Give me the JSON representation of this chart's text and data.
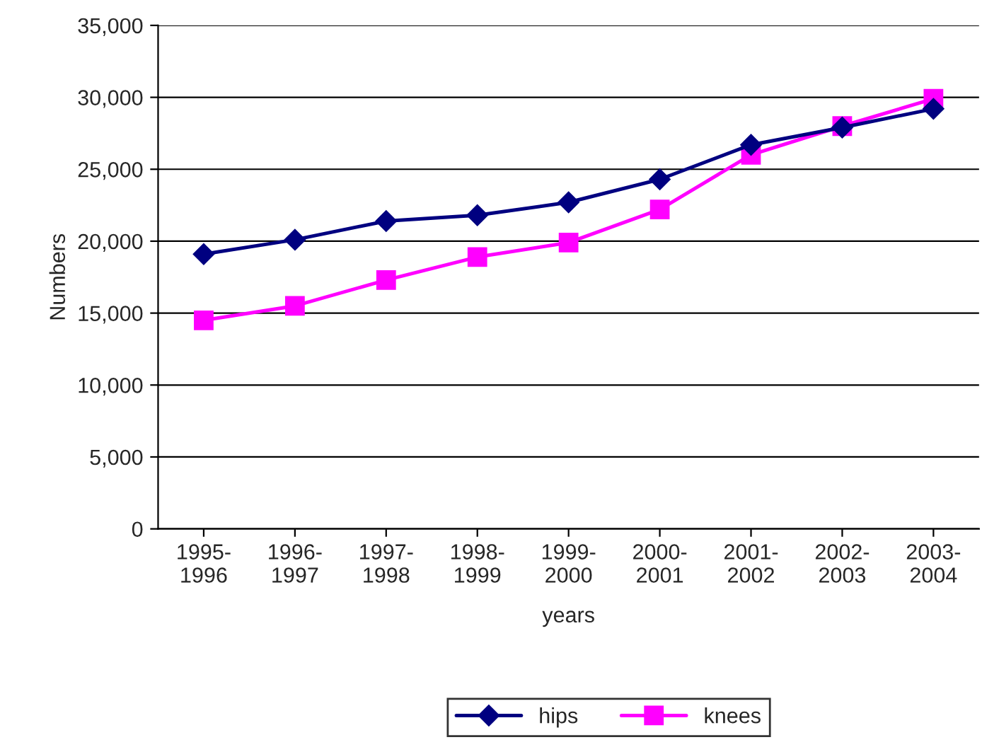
{
  "chart_data": {
    "type": "line",
    "xlabel": "years",
    "ylabel": "Numbers",
    "categories": [
      "1995-\n1996",
      "1996-\n1997",
      "1997-\n1998",
      "1998-\n1999",
      "1999-\n2000",
      "2000-\n2001",
      "2001-\n2002",
      "2002-\n2003",
      "2003-\n2004"
    ],
    "series": [
      {
        "name": "hips",
        "color": "#000080",
        "marker": "diamond",
        "values": [
          19100,
          20100,
          21400,
          21800,
          22700,
          24300,
          26700,
          27900,
          29200
        ]
      },
      {
        "name": "knees",
        "color": "#ff00ff",
        "marker": "square",
        "values": [
          14500,
          15500,
          17300,
          18900,
          19900,
          22200,
          26000,
          28000,
          29900
        ]
      }
    ],
    "ylim": [
      0,
      35000
    ],
    "yticks": [
      {
        "value": 0,
        "label": "0"
      },
      {
        "value": 5000,
        "label": "5,000"
      },
      {
        "value": 10000,
        "label": "10,000"
      },
      {
        "value": 15000,
        "label": "15,000"
      },
      {
        "value": 20000,
        "label": "20,000"
      },
      {
        "value": 25000,
        "label": "25,000"
      },
      {
        "value": 30000,
        "label": "30,000"
      },
      {
        "value": 35000,
        "label": "35,000"
      }
    ],
    "grid": "y",
    "legend": "bottom",
    "line_style": "solid"
  }
}
